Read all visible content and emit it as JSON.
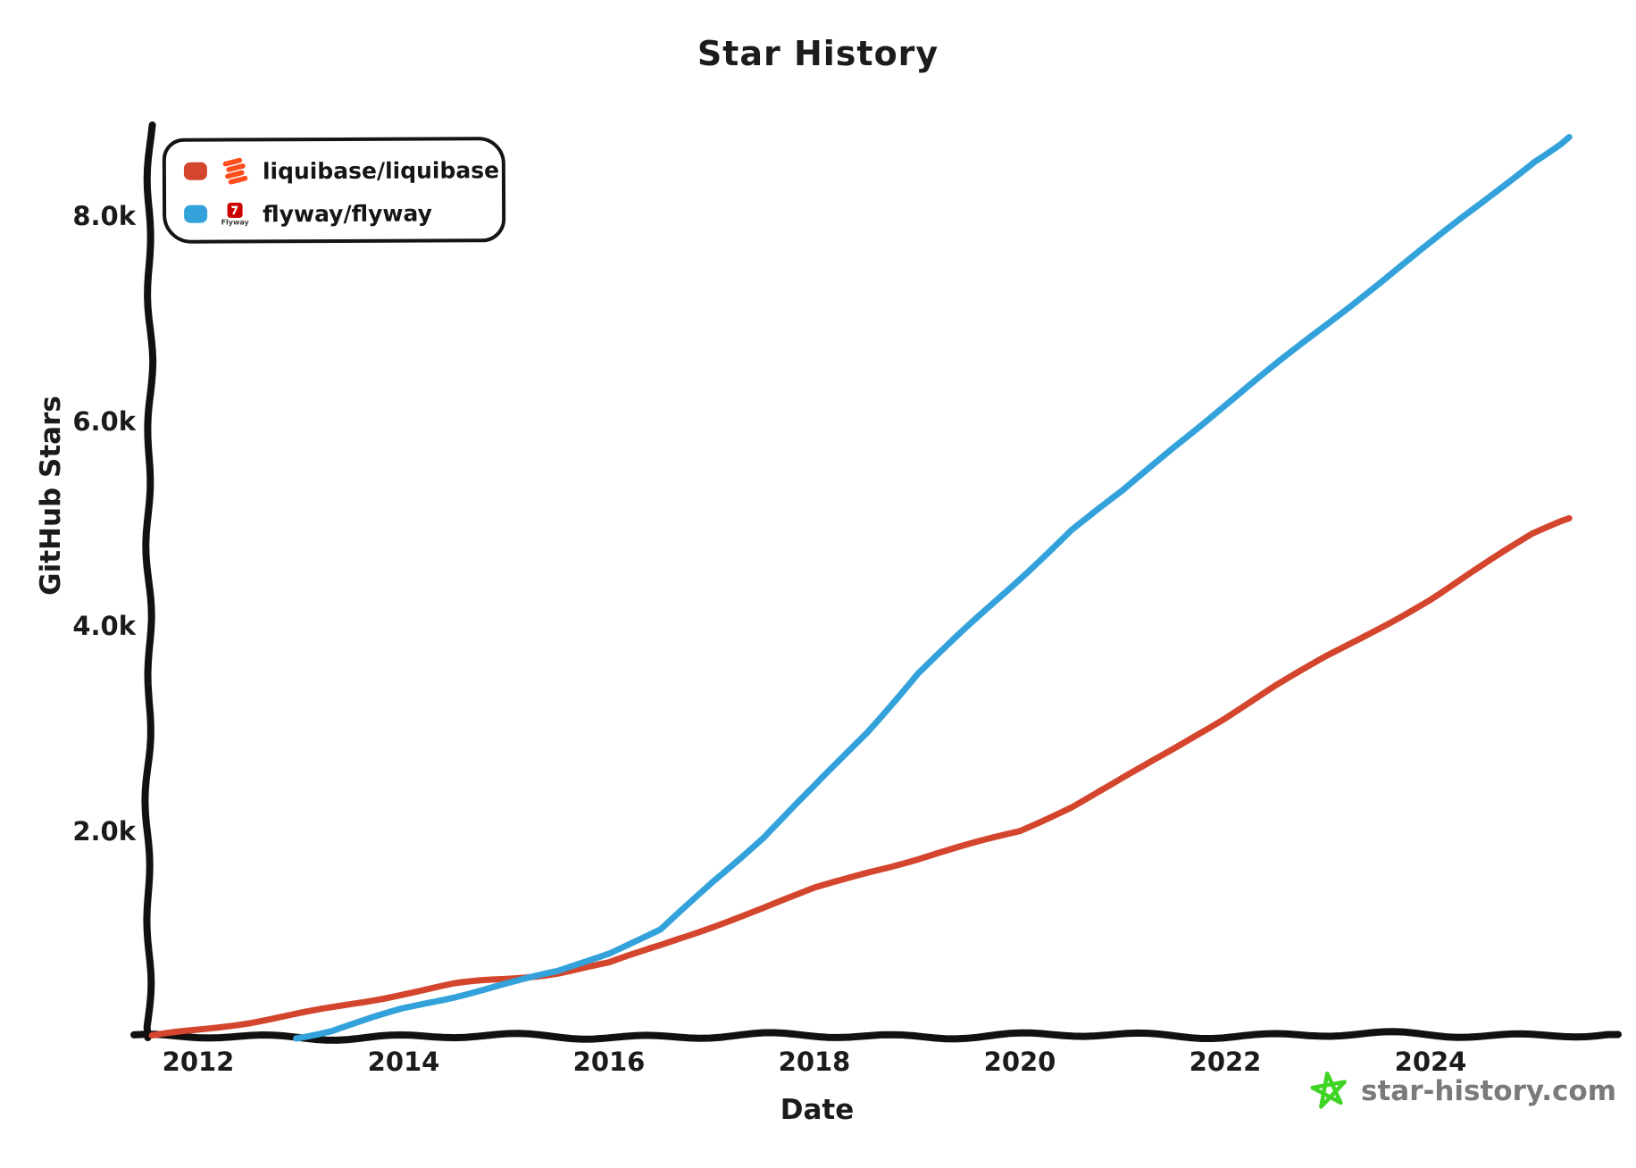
{
  "title": "Star History",
  "axes": {
    "x_label": "Date",
    "y_label": "GitHub Stars",
    "x_ticks": [
      {
        "label": "2012",
        "year": 2012
      },
      {
        "label": "2014",
        "year": 2014
      },
      {
        "label": "2016",
        "year": 2016
      },
      {
        "label": "2018",
        "year": 2018
      },
      {
        "label": "2020",
        "year": 2020
      },
      {
        "label": "2022",
        "year": 2022
      },
      {
        "label": "2024",
        "year": 2024
      }
    ],
    "y_ticks": [
      {
        "label": "2.0k",
        "value": 2000
      },
      {
        "label": "4.0k",
        "value": 4000
      },
      {
        "label": "6.0k",
        "value": 6000
      },
      {
        "label": "8.0k",
        "value": 8000
      }
    ]
  },
  "legend": {
    "items": [
      {
        "logo": "liquibase-logo",
        "logo_color": "#ff4d1c"
      },
      {
        "logo": "flyway-logo",
        "logo_color": "#cc0200",
        "logo_text": "Flyway"
      }
    ]
  },
  "watermark": {
    "text": "star-history.com",
    "star_color": "#3fd424",
    "text_color": "#7a7a7a"
  },
  "chart_data": {
    "type": "line",
    "title": "Star History",
    "xlabel": "Date",
    "ylabel": "GitHub Stars",
    "x_unit": "year",
    "xlim": [
      2011.5,
      2025.6
    ],
    "ylim": [
      0,
      8900
    ],
    "grid": false,
    "legend_position": "top-left",
    "style": "hand-drawn-xkcd",
    "axis_color": "#111111",
    "series": [
      {
        "name": "liquibase/liquibase",
        "color": "#d3452c",
        "points": [
          [
            2011.55,
            0
          ],
          [
            2012,
            60
          ],
          [
            2012.5,
            140
          ],
          [
            2013,
            230
          ],
          [
            2013.5,
            325
          ],
          [
            2014,
            420
          ],
          [
            2014.5,
            505
          ],
          [
            2015,
            565
          ],
          [
            2015.5,
            630
          ],
          [
            2016,
            720
          ],
          [
            2016.5,
            890
          ],
          [
            2017,
            1070
          ],
          [
            2017.5,
            1260
          ],
          [
            2018,
            1450
          ],
          [
            2018.5,
            1600
          ],
          [
            2019,
            1730
          ],
          [
            2019.5,
            1870
          ],
          [
            2020,
            2010
          ],
          [
            2020.5,
            2250
          ],
          [
            2021,
            2530
          ],
          [
            2021.5,
            2810
          ],
          [
            2022,
            3100
          ],
          [
            2022.5,
            3420
          ],
          [
            2023,
            3720
          ],
          [
            2023.5,
            4000
          ],
          [
            2024,
            4280
          ],
          [
            2024.5,
            4590
          ],
          [
            2025,
            4900
          ],
          [
            2025.35,
            5060
          ]
        ]
      },
      {
        "name": "flyway/flyway",
        "color": "#33a2db",
        "points": [
          [
            2012.95,
            0
          ],
          [
            2013.3,
            60
          ],
          [
            2013.6,
            150
          ],
          [
            2014,
            270
          ],
          [
            2014.5,
            390
          ],
          [
            2015,
            520
          ],
          [
            2015.5,
            640
          ],
          [
            2016,
            820
          ],
          [
            2016.5,
            1050
          ],
          [
            2017,
            1520
          ],
          [
            2017.5,
            1950
          ],
          [
            2018,
            2450
          ],
          [
            2018.5,
            2970
          ],
          [
            2019,
            3550
          ],
          [
            2019.5,
            4020
          ],
          [
            2020,
            4480
          ],
          [
            2020.5,
            4950
          ],
          [
            2021,
            5320
          ],
          [
            2021.5,
            5750
          ],
          [
            2022,
            6150
          ],
          [
            2022.5,
            6550
          ],
          [
            2023,
            6950
          ],
          [
            2023.5,
            7350
          ],
          [
            2024,
            7750
          ],
          [
            2024.5,
            8150
          ],
          [
            2025,
            8550
          ],
          [
            2025.35,
            8780
          ]
        ]
      }
    ]
  }
}
